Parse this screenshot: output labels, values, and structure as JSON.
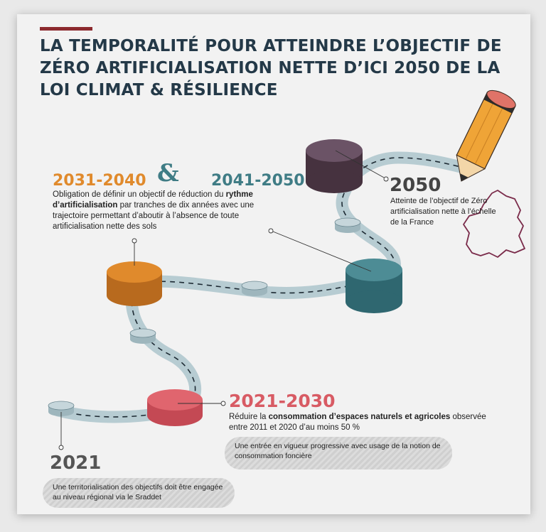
{
  "title": "La temporalité pour atteindre l’objectif de zéro artificialisation nette d’ici 2050 de la loi Climat & Résilience",
  "milestones": {
    "p2031": {
      "year": "2031-2040"
    },
    "amp": "&",
    "p2041": {
      "year": "2041-2050"
    },
    "p2031_text": {
      "t1": "Obligation de définir un objectif de réduction du ",
      "b1": "rythme d’artificialisation",
      "t2": " par tranches de dix années avec une trajectoire permettant d’aboutir à l’absence de toute artificialisation nette des sols"
    },
    "p2050": {
      "year": "2050",
      "text": "Atteinte de l’objectif de Zéro artificialisation nette à l’échelle de la France"
    },
    "p2021_2030": {
      "year": "2021-2030",
      "t1": "Réduire la ",
      "b1": "consommation d’espaces naturels et agricoles",
      "t2": " observée entre 2011 et 2020 d’au moins 50 %",
      "pill": "Une entrée en vigueur progressive avec usage de la notion de consommation foncière"
    },
    "p2021": {
      "year": "2021",
      "pill": "Une territorialisation des objectifs doit être engagée au niveau régional via le Sraddet"
    }
  },
  "colors": {
    "title": "#243948",
    "accent_bar": "#8c2a2e",
    "orange": "#e08a2c",
    "teal": "#3f7c85",
    "red": "#d85b64",
    "purple": "#5b4455",
    "road": "#b7ccd2",
    "map_outline": "#7a2b4a"
  }
}
